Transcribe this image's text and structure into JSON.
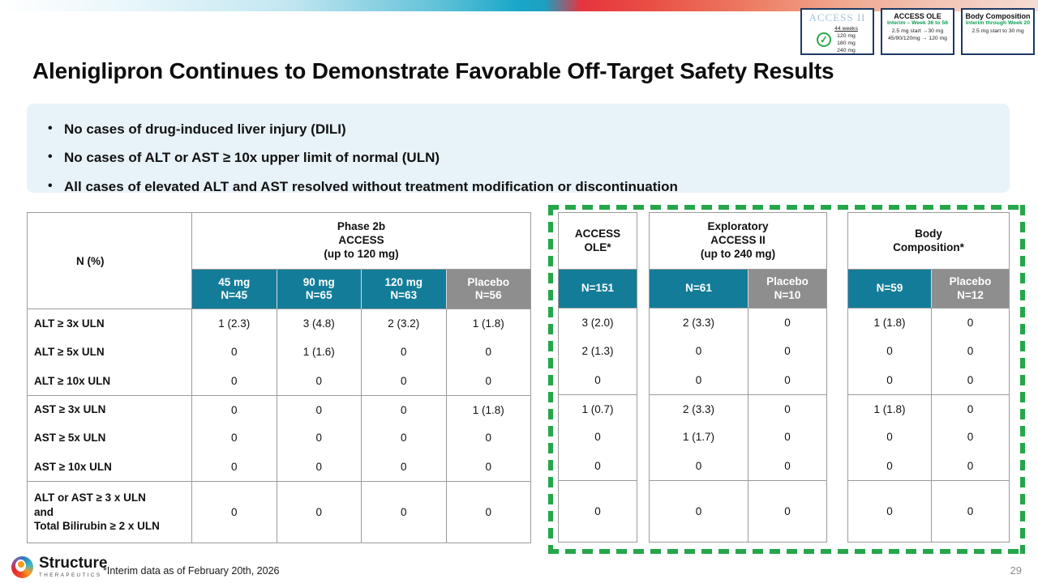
{
  "slide": {
    "title": "Aleniglipron Continues to Demonstrate Favorable Off-Target Safety Results",
    "page_number": "29",
    "footnote": "*Interim data as of February 20th, 2026"
  },
  "logo": {
    "brand": "Structure",
    "sub_brand": "THERAPEUTICS"
  },
  "colors": {
    "teal_header": "#137d99",
    "gray_header": "#8e8e8e",
    "highlight_green": "#25a749",
    "callout_bg": "#e8f3f9",
    "badge_border_navy": "#1d3a63",
    "badge_green_text": "#0ca152"
  },
  "badges": [
    {
      "title": "ACCESS II",
      "check_icon": "green-check-circle",
      "dose_header": "44 weeks",
      "lines": [
        "120 mg",
        "180 mg",
        "240 mg"
      ]
    },
    {
      "title": "ACCESS OLE",
      "subtitle": "Interim – Week 36 to 56",
      "lines": [
        "2.5 mg start →30 mg",
        "45/90/120mg → 120 mg"
      ]
    },
    {
      "title": "Body Composition",
      "subtitle": "Interim through Week 20",
      "lines": [
        "2.5 mg start to 30 mg"
      ]
    }
  ],
  "key_points": [
    "No cases of drug-induced liver injury (DILI)",
    "No cases of ALT or AST ≥ 10x upper limit of normal (ULN)",
    "All cases of elevated ALT and AST resolved without treatment modification or discontinuation"
  ],
  "safety_table": {
    "row_header_label": "N (%)",
    "tables": {
      "phase2b": {
        "title_lines": [
          "Phase 2b",
          "ACCESS",
          "(up to 120 mg)"
        ],
        "columns": [
          {
            "lines": [
              "45 mg",
              "N=45"
            ],
            "style": "teal"
          },
          {
            "lines": [
              "90 mg",
              "N=65"
            ],
            "style": "teal"
          },
          {
            "lines": [
              "120 mg",
              "N=63"
            ],
            "style": "teal"
          },
          {
            "lines": [
              "Placebo",
              "N=56"
            ],
            "style": "gray"
          }
        ]
      },
      "ole": {
        "title_lines": [
          "ACCESS",
          "OLE*"
        ],
        "columns": [
          {
            "lines": [
              "N=151"
            ],
            "style": "teal"
          }
        ]
      },
      "access2": {
        "title_lines": [
          "Exploratory",
          "ACCESS II",
          "(up to 240 mg)"
        ],
        "columns": [
          {
            "lines": [
              "N=61"
            ],
            "style": "teal"
          },
          {
            "lines": [
              "Placebo",
              "N=10"
            ],
            "style": "gray"
          }
        ]
      },
      "body_comp": {
        "title_lines": [
          "Body",
          "Composition*"
        ],
        "columns": [
          {
            "lines": [
              "N=59"
            ],
            "style": "teal"
          },
          {
            "lines": [
              "Placebo",
              "N=12"
            ],
            "style": "gray"
          }
        ]
      }
    },
    "rows": [
      {
        "label_lines": [
          "ALT ≥ 3x ULN"
        ],
        "values": {
          "phase2b": [
            "1 (2.3)",
            "3 (4.8)",
            "2 (3.2)",
            "1 (1.8)"
          ],
          "ole": [
            "3 (2.0)"
          ],
          "access2": [
            "2 (3.3)",
            "0"
          ],
          "body_comp": [
            "1 (1.8)",
            "0"
          ]
        }
      },
      {
        "label_lines": [
          "ALT ≥ 5x ULN"
        ],
        "values": {
          "phase2b": [
            "0",
            "1 (1.6)",
            "0",
            "0"
          ],
          "ole": [
            "2 (1.3)"
          ],
          "access2": [
            "0",
            "0"
          ],
          "body_comp": [
            "0",
            "0"
          ]
        }
      },
      {
        "label_lines": [
          "ALT ≥ 10x ULN"
        ],
        "values": {
          "phase2b": [
            "0",
            "0",
            "0",
            "0"
          ],
          "ole": [
            "0"
          ],
          "access2": [
            "0",
            "0"
          ],
          "body_comp": [
            "0",
            "0"
          ]
        }
      },
      {
        "label_lines": [
          "AST ≥ 3x ULN"
        ],
        "group_start": true,
        "values": {
          "phase2b": [
            "0",
            "0",
            "0",
            "1 (1.8)"
          ],
          "ole": [
            "1 (0.7)"
          ],
          "access2": [
            "2 (3.3)",
            "0"
          ],
          "body_comp": [
            "1 (1.8)",
            "0"
          ]
        }
      },
      {
        "label_lines": [
          "AST ≥ 5x ULN"
        ],
        "values": {
          "phase2b": [
            "0",
            "0",
            "0",
            "0"
          ],
          "ole": [
            "0"
          ],
          "access2": [
            "1 (1.7)",
            "0"
          ],
          "body_comp": [
            "0",
            "0"
          ]
        }
      },
      {
        "label_lines": [
          "AST ≥ 10x ULN"
        ],
        "values": {
          "phase2b": [
            "0",
            "0",
            "0",
            "0"
          ],
          "ole": [
            "0"
          ],
          "access2": [
            "0",
            "0"
          ],
          "body_comp": [
            "0",
            "0"
          ]
        }
      },
      {
        "label_lines": [
          "ALT or AST ≥ 3 x ULN",
          "and",
          "Total Bilirubin ≥ 2 x ULN"
        ],
        "group_start": true,
        "tall": true,
        "values": {
          "phase2b": [
            "0",
            "0",
            "0",
            "0"
          ],
          "ole": [
            "0"
          ],
          "access2": [
            "0",
            "0"
          ],
          "body_comp": [
            "0",
            "0"
          ]
        }
      }
    ]
  }
}
